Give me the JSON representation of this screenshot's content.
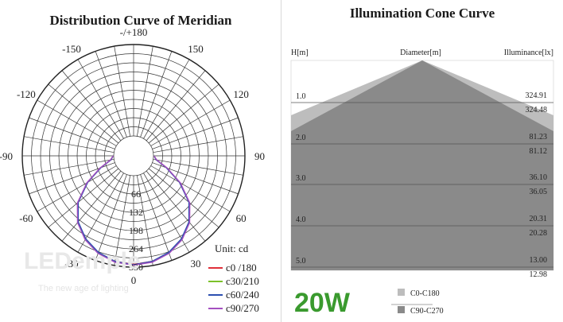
{
  "brand": {
    "name": "LEDemple",
    "tagline": "The new age of lighting"
  },
  "power_badge": "20W",
  "colors": {
    "c0": "#e0303a",
    "c30": "#7cc12a",
    "c60": "#2c4fb0",
    "c90": "#a44fc0",
    "cone_light": "#bdbdbd",
    "cone_dark": "#8a8a8a",
    "badge": "#3a9a2e"
  },
  "chart_data": [
    {
      "type": "polar",
      "title": "Distribution Curve of  Meridian",
      "unit_label": "Unit: cd",
      "angle_labels": [
        "-/+180",
        "150",
        "120",
        "90",
        "60",
        "30",
        "0",
        "-30",
        "-60",
        "-90",
        "-120",
        "-150"
      ],
      "angle_values": [
        180,
        150,
        120,
        90,
        60,
        30,
        0,
        -30,
        -60,
        -90,
        -120,
        -150
      ],
      "radial_labels": [
        "66",
        "132",
        "198",
        "264",
        "330"
      ],
      "rmax": 330,
      "series": [
        {
          "name": "c0 /180",
          "color": "#e0303a",
          "angles": [
            0,
            10,
            20,
            30,
            40,
            50,
            60,
            70,
            80,
            90
          ],
          "values": [
            320,
            315,
            300,
            275,
            240,
            190,
            120,
            55,
            12,
            2
          ]
        },
        {
          "name": "c30/210",
          "color": "#7cc12a",
          "angles": [
            0,
            10,
            20,
            30,
            40,
            50,
            60,
            70,
            80,
            90
          ],
          "values": [
            322,
            316,
            301,
            276,
            241,
            191,
            121,
            56,
            12,
            2
          ]
        },
        {
          "name": "c60/240",
          "color": "#2c4fb0",
          "angles": [
            0,
            10,
            20,
            30,
            40,
            50,
            60,
            70,
            80,
            90
          ],
          "values": [
            321,
            315,
            299,
            274,
            239,
            189,
            119,
            54,
            11,
            2
          ]
        },
        {
          "name": "c90/270",
          "color": "#a44fc0",
          "angles": [
            0,
            10,
            20,
            30,
            40,
            50,
            60,
            70,
            80,
            90
          ],
          "values": [
            323,
            318,
            303,
            278,
            243,
            193,
            123,
            57,
            13,
            2
          ]
        }
      ]
    },
    {
      "type": "cone",
      "title": "Illumination Cone Curve",
      "header_h": "H[m]",
      "header_d": "Diameter[m]",
      "header_e": "Illuminance[lx]",
      "rows": [
        {
          "h": "1.0",
          "e1": "324.91",
          "e2": "324.48"
        },
        {
          "h": "2.0",
          "e1": "81.23",
          "e2": "81.12"
        },
        {
          "h": "3.0",
          "e1": "36.10",
          "e2": "36.05"
        },
        {
          "h": "4.0",
          "e1": "20.31",
          "e2": "20.28"
        },
        {
          "h": "5.0",
          "e1": "13.00",
          "e2": "12.98"
        }
      ],
      "legend": [
        {
          "name": "C0-C180",
          "color": "#bdbdbd"
        },
        {
          "name": "C90-C270",
          "color": "#8a8a8a"
        }
      ]
    }
  ]
}
